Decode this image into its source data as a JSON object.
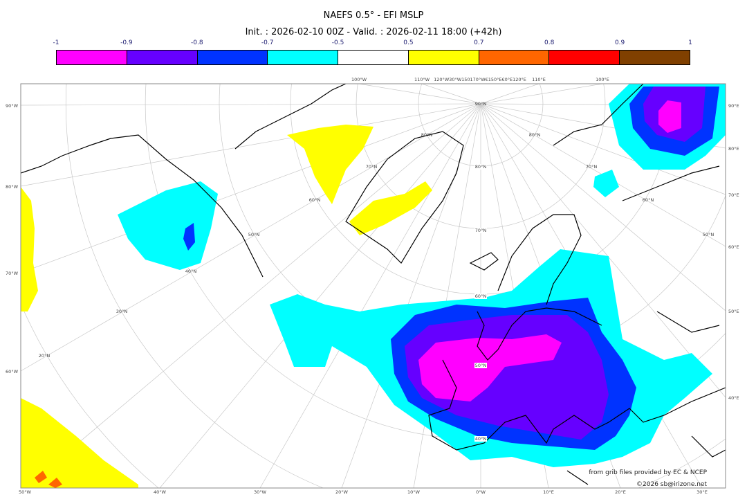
{
  "header": {
    "title": "NAEFS 0.5° - EFI MSLP",
    "subtitle": "Init. : 2026-02-10 00Z - Valid. : 2026-02-11 18:00 (+42h)"
  },
  "colorbar": {
    "labels": [
      "-1",
      "-0.9",
      "-0.8",
      "-0.7",
      "-0.5",
      "0.5",
      "0.7",
      "0.8",
      "0.9",
      "1"
    ],
    "colors": [
      "#ff00ff",
      "#6600ff",
      "#0033ff",
      "#00ffff",
      "#ffffff",
      "#ffff00",
      "#ff6600",
      "#ff0000",
      "#804000"
    ]
  },
  "map": {
    "left_labels": [
      "90°W",
      "80°W",
      "70°W",
      "60°W"
    ],
    "right_labels": [
      "90°E",
      "80°E",
      "70°E",
      "60°E",
      "50°E",
      "40°E"
    ],
    "bottom_labels": [
      "50°W",
      "40°W",
      "30°W",
      "20°W",
      "10°W",
      "0°W",
      "10°E",
      "20°E",
      "30°E"
    ],
    "top_labels": [
      "100°W",
      "110°W",
      "120°W30°W150170°W€150°E€0°E120°E",
      "110°E",
      "100°E"
    ],
    "lat_labels": [
      "90°N",
      "80°N",
      "70°N",
      "60°N",
      "50°N",
      "40°N",
      "30°N",
      "20°N"
    ],
    "meridian0_labels": [
      "80°N",
      "70°N",
      "60°N",
      "50°N",
      "40°N"
    ],
    "east_lat_labels": [
      "80°N",
      "70°N",
      "60°N",
      "50°N"
    ]
  },
  "footer": {
    "credit": "from grib files provided by EC & NCEP",
    "copyright": "©2026 sb@irizone.net"
  }
}
